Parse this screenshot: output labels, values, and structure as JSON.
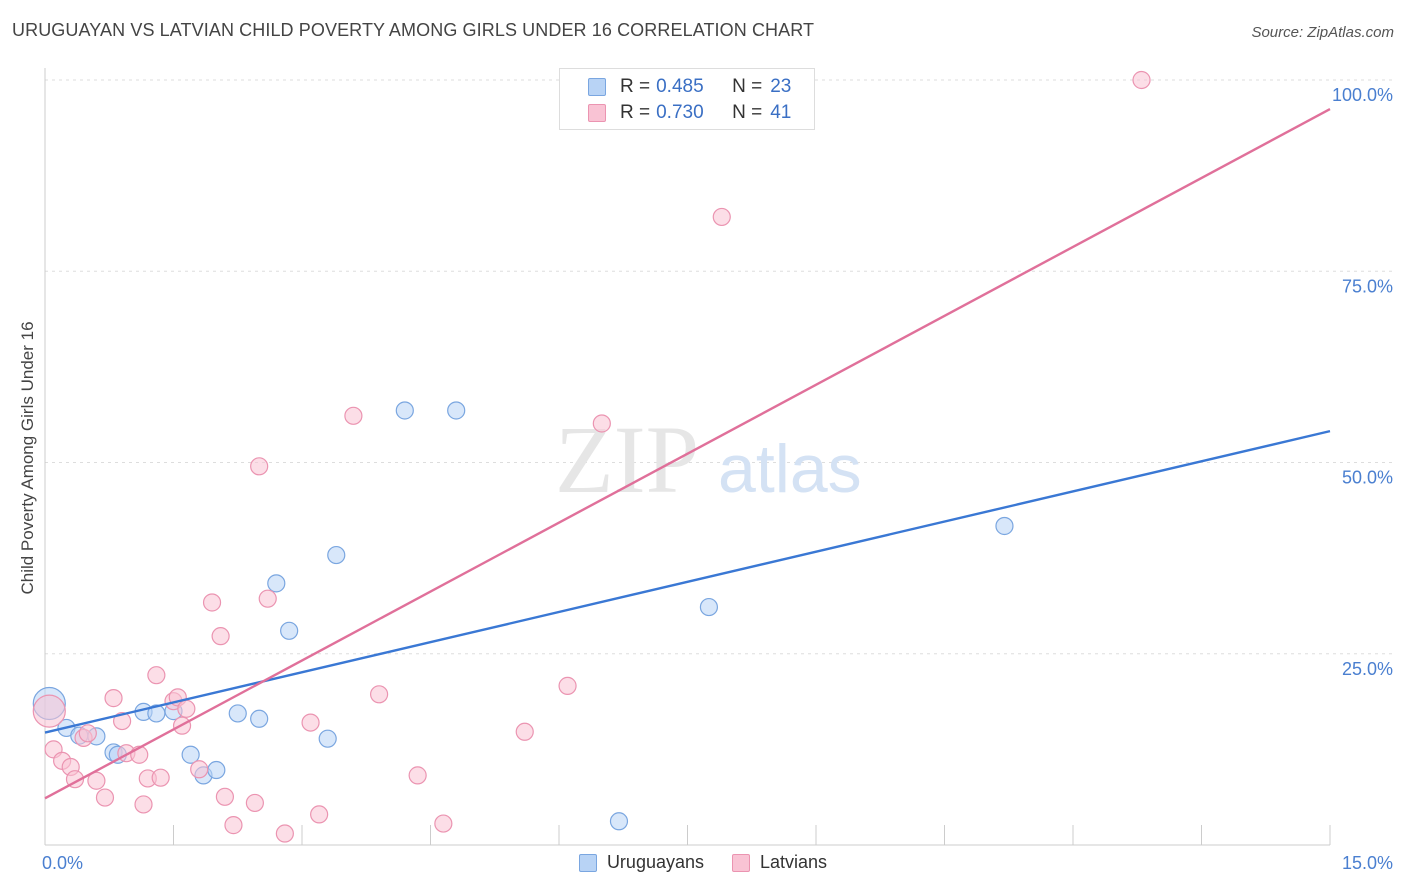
{
  "header": {
    "title": "URUGUAYAN VS LATVIAN CHILD POVERTY AMONG GIRLS UNDER 16 CORRELATION CHART",
    "source": "Source: ZipAtlas.com"
  },
  "watermark": {
    "zip": "ZIP",
    "atlas": "atlas"
  },
  "legend": {
    "rows": [
      {
        "r_label": "R = ",
        "r_value": "0.485",
        "n_label": "N = ",
        "n_value": "23"
      },
      {
        "r_label": "R = ",
        "r_value": "0.730",
        "n_label": "N = ",
        "n_value": "41"
      }
    ],
    "bottom": [
      "Uruguayans",
      "Latvians"
    ]
  },
  "colors": {
    "uruguayans_fill": "#b8d3f5",
    "uruguayans_stroke": "#7aa6e0",
    "uruguayans_line": "#3a78d4",
    "latvians_fill": "#f9c3d4",
    "latvians_stroke": "#eb94b1",
    "latvians_line": "#e0709a",
    "tick_label": "#4a7fd0",
    "grid": "#dddddd"
  },
  "chart_data": {
    "type": "scatter",
    "title": "URUGUAYAN VS LATVIAN CHILD POVERTY AMONG GIRLS UNDER 16 CORRELATION CHART",
    "xlabel": "",
    "ylabel": "Child Poverty Among Girls Under 16",
    "xlim": [
      0,
      15
    ],
    "ylim": [
      0,
      100
    ],
    "x_tick_labels": [
      "0.0%",
      "15.0%"
    ],
    "y_tick_labels": [
      "25.0%",
      "50.0%",
      "75.0%",
      "100.0%"
    ],
    "y_ticks": [
      25,
      50,
      75,
      100
    ],
    "grid": true,
    "legend_placement": "top-center and bottom",
    "series": [
      {
        "name": "Uruguayans",
        "r": 0.485,
        "n": 23,
        "trend": {
          "x": [
            0,
            15
          ],
          "y": [
            14.7,
            54.1
          ]
        },
        "points": [
          {
            "x": 0.05,
            "y": 18.5,
            "big": true
          },
          {
            "x": 0.25,
            "y": 15.3
          },
          {
            "x": 0.4,
            "y": 14.3
          },
          {
            "x": 0.6,
            "y": 14.2
          },
          {
            "x": 0.8,
            "y": 12.1
          },
          {
            "x": 0.85,
            "y": 11.8
          },
          {
            "x": 1.15,
            "y": 17.4
          },
          {
            "x": 1.3,
            "y": 17.2
          },
          {
            "x": 1.5,
            "y": 17.5
          },
          {
            "x": 1.7,
            "y": 11.8
          },
          {
            "x": 1.85,
            "y": 9.1
          },
          {
            "x": 2.0,
            "y": 9.8
          },
          {
            "x": 2.25,
            "y": 17.2
          },
          {
            "x": 2.5,
            "y": 16.5
          },
          {
            "x": 2.7,
            "y": 34.2
          },
          {
            "x": 2.85,
            "y": 28.0
          },
          {
            "x": 3.3,
            "y": 13.9
          },
          {
            "x": 3.4,
            "y": 37.9
          },
          {
            "x": 4.2,
            "y": 56.8
          },
          {
            "x": 4.8,
            "y": 56.8
          },
          {
            "x": 6.7,
            "y": 3.1
          },
          {
            "x": 7.75,
            "y": 31.1
          },
          {
            "x": 11.2,
            "y": 41.7
          }
        ]
      },
      {
        "name": "Latvians",
        "r": 0.73,
        "n": 41,
        "trend": {
          "x": [
            0,
            15
          ],
          "y": [
            6.1,
            96.2
          ]
        },
        "points": [
          {
            "x": 0.05,
            "y": 17.5,
            "big": true
          },
          {
            "x": 0.1,
            "y": 12.5
          },
          {
            "x": 0.2,
            "y": 11.0
          },
          {
            "x": 0.3,
            "y": 10.2
          },
          {
            "x": 0.35,
            "y": 8.6
          },
          {
            "x": 0.45,
            "y": 14.0
          },
          {
            "x": 0.5,
            "y": 14.6
          },
          {
            "x": 0.6,
            "y": 8.4
          },
          {
            "x": 0.7,
            "y": 6.2
          },
          {
            "x": 0.8,
            "y": 19.2
          },
          {
            "x": 0.9,
            "y": 16.2
          },
          {
            "x": 0.95,
            "y": 12.0
          },
          {
            "x": 1.1,
            "y": 11.8
          },
          {
            "x": 1.15,
            "y": 5.3
          },
          {
            "x": 1.2,
            "y": 8.7
          },
          {
            "x": 1.3,
            "y": 22.2
          },
          {
            "x": 1.35,
            "y": 8.8
          },
          {
            "x": 1.5,
            "y": 18.8
          },
          {
            "x": 1.55,
            "y": 19.3
          },
          {
            "x": 1.6,
            "y": 15.6
          },
          {
            "x": 1.65,
            "y": 17.8
          },
          {
            "x": 1.8,
            "y": 9.9
          },
          {
            "x": 1.95,
            "y": 31.7
          },
          {
            "x": 2.05,
            "y": 27.3
          },
          {
            "x": 2.1,
            "y": 6.3
          },
          {
            "x": 2.2,
            "y": 2.6
          },
          {
            "x": 2.45,
            "y": 5.5
          },
          {
            "x": 2.5,
            "y": 49.5
          },
          {
            "x": 2.6,
            "y": 32.2
          },
          {
            "x": 2.8,
            "y": 1.5
          },
          {
            "x": 3.1,
            "y": 16.0
          },
          {
            "x": 3.2,
            "y": 4.0
          },
          {
            "x": 3.6,
            "y": 56.1
          },
          {
            "x": 3.9,
            "y": 19.7
          },
          {
            "x": 4.35,
            "y": 9.1
          },
          {
            "x": 4.65,
            "y": 2.8
          },
          {
            "x": 5.6,
            "y": 14.8
          },
          {
            "x": 6.1,
            "y": 20.8
          },
          {
            "x": 6.5,
            "y": 55.1
          },
          {
            "x": 7.9,
            "y": 82.1
          },
          {
            "x": 12.8,
            "y": 100.0
          }
        ]
      }
    ]
  }
}
